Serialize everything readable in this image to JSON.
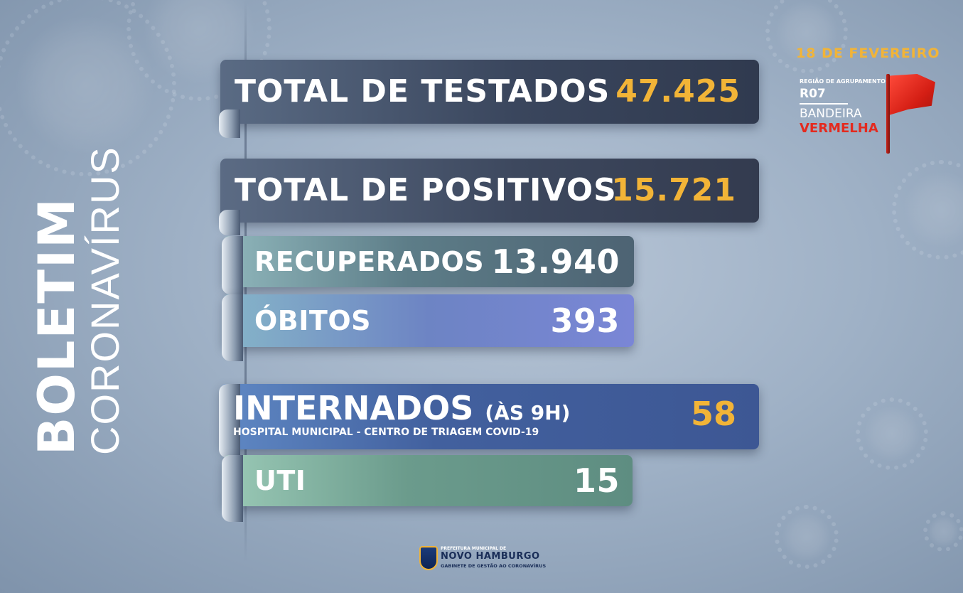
{
  "side_title": {
    "bold": "BOLETIM",
    "light": "CORONAVÍRUS"
  },
  "date": "18 DE FEVEREIRO",
  "region": {
    "small_label": "REGIÃO DE AGRUPAMENTO",
    "code": "R07",
    "flag_line1": "BANDEIRA",
    "flag_line2": "VERMELHA",
    "flag_color": "#e42a1f"
  },
  "stats": {
    "testados": {
      "label": "TOTAL DE TESTADOS",
      "value": "47.425"
    },
    "positivos": {
      "label": "TOTAL DE POSITIVOS",
      "value": "15.721"
    },
    "recuperados": {
      "label": "RECUPERADOS",
      "value": "13.940"
    },
    "obitos": {
      "label": "ÓBITOS",
      "value": "393"
    },
    "internados": {
      "label": "INTERNADOS",
      "suffix": "(ÀS 9H)",
      "sub": "HOSPITAL MUNICIPAL - CENTRO DE TRIAGEM COVID-19",
      "value": "58"
    },
    "uti": {
      "label": "UTI",
      "value": "15"
    }
  },
  "logo": {
    "line1": "PREFEITURA MUNICIPAL DE",
    "line2": "NOVO HAMBURGO",
    "line3": "GABINETE DE GESTÃO AO CORONAVÍRUS"
  },
  "colors": {
    "accent": "#f2b437",
    "red": "#e42a1f"
  }
}
